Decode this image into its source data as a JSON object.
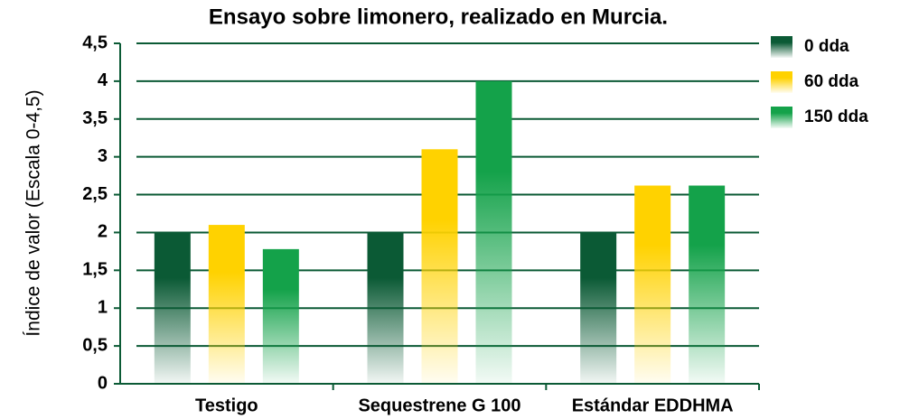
{
  "chart_data": {
    "type": "bar",
    "title": "Ensayo sobre limonero, realizado en Murcia.",
    "ylabel": "Índice de valor (Escala 0-4,5)",
    "categories": [
      "Testigo",
      "Sequestrene G 100",
      "Estándar EDDHMA"
    ],
    "series": [
      {
        "name": "0 dda",
        "color": "#0b5a35",
        "values": [
          2,
          2,
          2
        ]
      },
      {
        "name": "60 dda",
        "color": "#ffd200",
        "values": [
          2.1,
          3.1,
          2.62
        ]
      },
      {
        "name": "150 dda",
        "color": "#14a24a",
        "values": [
          1.78,
          4,
          2.62
        ]
      }
    ],
    "ylim": [
      0,
      4.5
    ],
    "yticks": [
      0,
      {
        "value": 0.5,
        "label": "0,5"
      },
      1,
      {
        "value": 1.5,
        "label": "1,5"
      },
      2,
      {
        "value": 2.5,
        "label": "2,5"
      },
      3,
      {
        "value": 3.5,
        "label": "3,5"
      },
      4,
      {
        "value": 4.5,
        "label": "4,5"
      }
    ],
    "grid": true,
    "legend": "right"
  }
}
